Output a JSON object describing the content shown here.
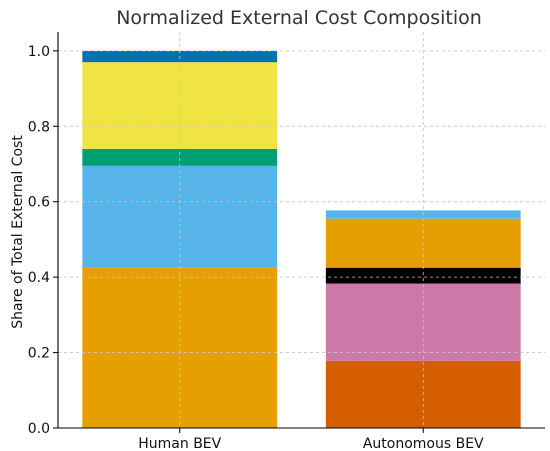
{
  "chart_data": {
    "type": "bar",
    "stacked": true,
    "title": "Normalized External Cost Composition",
    "xlabel": "",
    "ylabel": "Share of Total External Cost",
    "categories": [
      "Human BEV",
      "Autonomous BEV"
    ],
    "ylim": [
      0,
      1.05
    ],
    "yticks": [
      "0.0",
      "0.2",
      "0.4",
      "0.6",
      "0.8",
      "1.0"
    ],
    "ytick_values": [
      0.0,
      0.2,
      0.4,
      0.6,
      0.8,
      1.0
    ],
    "grid": true,
    "legend": "none",
    "stacks": [
      {
        "category": "Human BEV",
        "segments": [
          {
            "value": 0.425,
            "color": "#E69F00"
          },
          {
            "value": 0.27,
            "color": "#56B4E9"
          },
          {
            "value": 0.045,
            "color": "#009E73"
          },
          {
            "value": 0.23,
            "color": "#F0E442"
          },
          {
            "value": 0.03,
            "color": "#0072B2"
          }
        ]
      },
      {
        "category": "Autonomous BEV",
        "segments": [
          {
            "value": 0.178,
            "color": "#D55E00"
          },
          {
            "value": 0.205,
            "color": "#CC79A7"
          },
          {
            "value": 0.042,
            "color": "#000000"
          },
          {
            "value": 0.13,
            "color": "#E69F00"
          },
          {
            "value": 0.022,
            "color": "#56B4E9"
          }
        ]
      }
    ]
  }
}
